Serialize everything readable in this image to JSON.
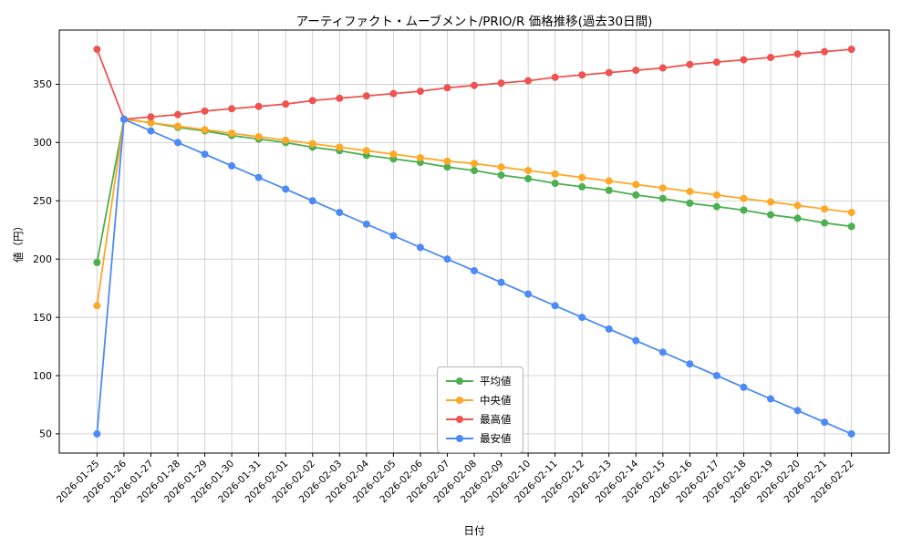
{
  "chart_data": {
    "type": "line",
    "title": "アーティファクト・ムーブメント/PRIO/R 価格推移(過去30日間)",
    "xlabel": "日付",
    "ylabel": "値（円）",
    "grid": true,
    "legend_position": "lower center",
    "ylim": [
      33.5,
      396.5
    ],
    "yticks": [
      50,
      100,
      150,
      200,
      250,
      300,
      350
    ],
    "categories": [
      "2026-01-25",
      "2026-01-26",
      "2026-01-27",
      "2026-01-28",
      "2026-01-29",
      "2026-01-30",
      "2026-01-31",
      "2026-02-01",
      "2026-02-02",
      "2026-02-03",
      "2026-02-04",
      "2026-02-05",
      "2026-02-06",
      "2026-02-07",
      "2026-02-08",
      "2026-02-09",
      "2026-02-10",
      "2026-02-11",
      "2026-02-12",
      "2026-02-13",
      "2026-02-14",
      "2026-02-15",
      "2026-02-16",
      "2026-02-17",
      "2026-02-18",
      "2026-02-19",
      "2026-02-20",
      "2026-02-21",
      "2026-02-22"
    ],
    "series": [
      {
        "id": "average",
        "name": "平均値",
        "color": "#4CAF50",
        "values": [
          197,
          320,
          317,
          313,
          310,
          306,
          303,
          300,
          296,
          293,
          289,
          286,
          283,
          279,
          276,
          272,
          269,
          265,
          262,
          259,
          255,
          252,
          248,
          245,
          242,
          238,
          235,
          231,
          228
        ]
      },
      {
        "id": "median",
        "name": "中央値",
        "color": "#FFA726",
        "values": [
          160,
          320,
          317,
          314,
          311,
          308,
          305,
          302,
          299,
          296,
          293,
          290,
          287,
          284,
          282,
          279,
          276,
          273,
          270,
          267,
          264,
          261,
          258,
          255,
          252,
          249,
          246,
          243,
          240
        ]
      },
      {
        "id": "max",
        "name": "最高値",
        "color": "#EF5350",
        "values": [
          380,
          320,
          322,
          324,
          327,
          329,
          331,
          333,
          336,
          338,
          340,
          342,
          344,
          347,
          349,
          351,
          353,
          356,
          358,
          360,
          362,
          364,
          367,
          369,
          371,
          373,
          376,
          378,
          380
        ]
      },
      {
        "id": "min",
        "name": "最安値",
        "color": "#4C8BF5",
        "values": [
          50,
          320,
          310,
          300,
          290,
          280,
          270,
          260,
          250,
          240,
          230,
          220,
          210,
          200,
          190,
          180,
          170,
          160,
          150,
          140,
          130,
          120,
          110,
          100,
          90,
          80,
          70,
          60,
          50
        ]
      }
    ]
  }
}
